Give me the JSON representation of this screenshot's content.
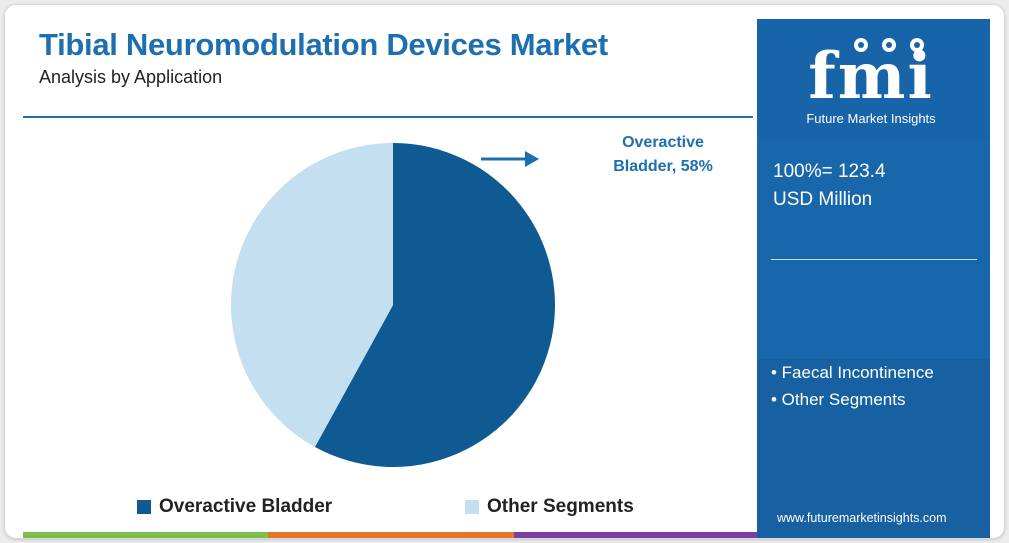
{
  "chart_data": {
    "type": "pie",
    "title": "Tibial Neuromodulation Devices Market",
    "subtitle": "Analysis by Application",
    "slices": [
      {
        "label": "Overactive Bladder",
        "value": 58,
        "color": "#0f5a92"
      },
      {
        "label": "Other Segments",
        "value": 42,
        "color": "#c3dff0"
      }
    ],
    "annotations": [
      "Overactive",
      "Bladder, 58%"
    ],
    "legend": [
      "Overactive Bladder",
      "Other Segments"
    ],
    "legend_position": "bottom"
  },
  "panel": {
    "logo_text": "fmi",
    "logo_sub": "Future Market Insights",
    "total_line1": "100%= 123.4",
    "total_line2": "USD Million",
    "bullets": [
      "• Faecal Incontinence",
      "• Other Segments"
    ],
    "website": "www.futuremarketinsights.com"
  },
  "colors": {
    "accent": "#1d6fb0",
    "panel": "#1864a8",
    "bottom_bar": [
      "#7cc04a",
      "#e8742b",
      "#7a3fa0"
    ]
  }
}
